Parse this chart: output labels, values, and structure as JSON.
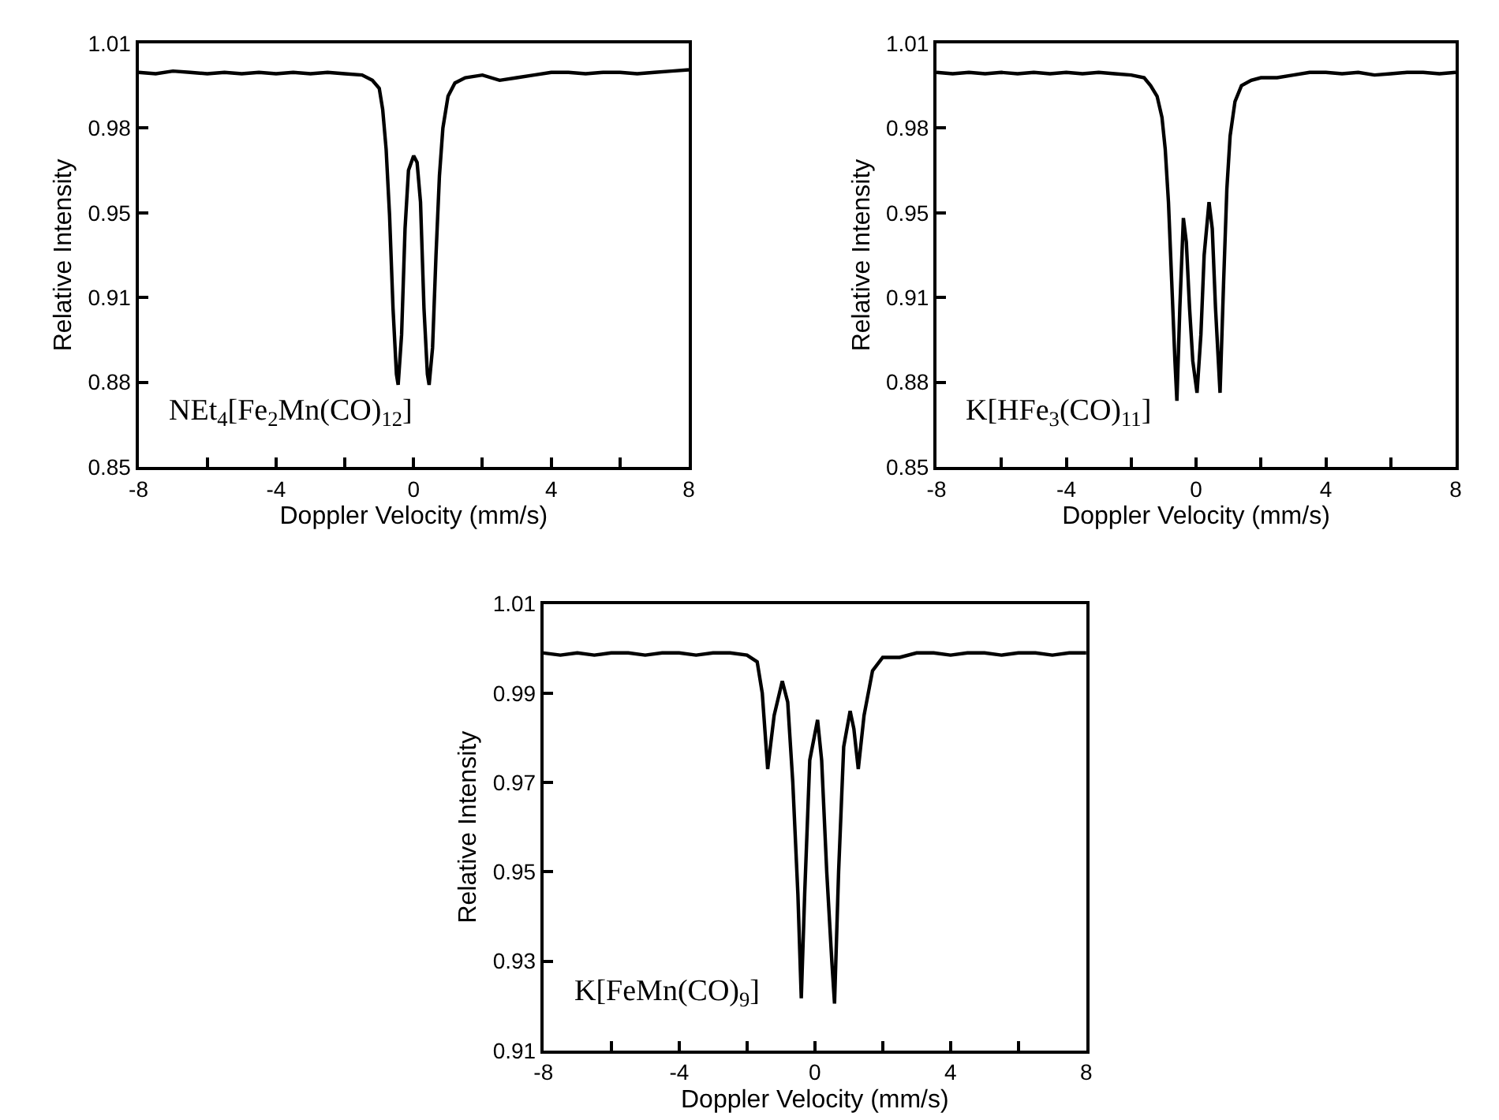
{
  "chart_data": [
    {
      "type": "line",
      "xlabel": "Doppler Velocity (mm/s)",
      "ylabel": "Relative Intensity",
      "annotations": [
        "NEt$_{4}$[Fe$_{2}$Mn(CO)$_{12}$]"
      ],
      "xlim": [
        -8,
        8
      ],
      "xticks": [
        -8,
        {
          "value": -6,
          "label": null
        },
        -4,
        {
          "value": -2,
          "label": null
        },
        0,
        {
          "value": 2,
          "label": null
        },
        4,
        {
          "value": 6,
          "label": null
        },
        8
      ],
      "ylim": [
        0.85,
        1.01
      ],
      "yticks": [
        0.85,
        {
          "value": 0.882,
          "label": "0.88"
        },
        {
          "value": 0.914,
          "label": "0.91"
        },
        {
          "value": 0.946,
          "label": "0.95"
        },
        {
          "value": 0.978,
          "label": "0.98"
        },
        1.01
      ],
      "marker": "none",
      "line_style": "solid",
      "x": [
        -8,
        -7.5,
        -7,
        -6.5,
        -6,
        -5.5,
        -5,
        -4.5,
        -4,
        -3.5,
        -3,
        -2.5,
        -2,
        -1.5,
        -1.2,
        -1.0,
        -0.9,
        -0.8,
        -0.7,
        -0.6,
        -0.5,
        -0.45,
        -0.35,
        -0.25,
        -0.15,
        0,
        0.1,
        0.2,
        0.3,
        0.4,
        0.45,
        0.55,
        0.65,
        0.75,
        0.85,
        1.0,
        1.2,
        1.5,
        2,
        2.5,
        3,
        3.5,
        4,
        4.5,
        5,
        5.5,
        6,
        6.5,
        7,
        7.5,
        8
      ],
      "series": [
        {
          "color": "#000000",
          "values": [
            0.999,
            0.9985,
            0.9995,
            0.999,
            0.9985,
            0.999,
            0.9985,
            0.999,
            0.9985,
            0.999,
            0.9985,
            0.999,
            0.9985,
            0.998,
            0.996,
            0.993,
            0.985,
            0.97,
            0.945,
            0.91,
            0.885,
            0.881,
            0.9,
            0.94,
            0.962,
            0.9675,
            0.965,
            0.95,
            0.91,
            0.885,
            0.881,
            0.895,
            0.93,
            0.96,
            0.978,
            0.99,
            0.995,
            0.997,
            0.998,
            0.996,
            0.997,
            0.998,
            0.999,
            0.999,
            0.9985,
            0.999,
            0.999,
            0.9985,
            0.999,
            0.9995,
            1.0
          ]
        }
      ]
    },
    {
      "type": "line",
      "xlabel": "Doppler Velocity (mm/s)",
      "ylabel": "Relative Intensity",
      "annotations": [
        "K[HFe$_{3}$(CO)$_{11}$]"
      ],
      "xlim": [
        -8,
        8
      ],
      "xticks": [
        -8,
        {
          "value": -6,
          "label": null
        },
        -4,
        {
          "value": -2,
          "label": null
        },
        0,
        {
          "value": 2,
          "label": null
        },
        4,
        {
          "value": 6,
          "label": null
        },
        8
      ],
      "ylim": [
        0.85,
        1.01
      ],
      "yticks": [
        0.85,
        {
          "value": 0.882,
          "label": "0.88"
        },
        {
          "value": 0.914,
          "label": "0.91"
        },
        {
          "value": 0.946,
          "label": "0.95"
        },
        {
          "value": 0.978,
          "label": "0.98"
        },
        1.01
      ],
      "marker": "none",
      "line_style": "solid",
      "x": [
        -8,
        -7.5,
        -7,
        -6.5,
        -6,
        -5.5,
        -5,
        -4.5,
        -4,
        -3.5,
        -3,
        -2.5,
        -2,
        -1.6,
        -1.4,
        -1.2,
        -1.05,
        -0.95,
        -0.85,
        -0.75,
        -0.65,
        -0.59,
        -0.5,
        -0.39,
        -0.3,
        -0.2,
        -0.1,
        0.03,
        0.15,
        0.25,
        0.4,
        0.5,
        0.6,
        0.74,
        0.85,
        0.95,
        1.05,
        1.2,
        1.4,
        1.7,
        2,
        2.5,
        3,
        3.5,
        4,
        4.5,
        5,
        5.5,
        6,
        6.5,
        7,
        7.5,
        8
      ],
      "series": [
        {
          "color": "#000000",
          "values": [
            0.999,
            0.9985,
            0.999,
            0.9985,
            0.999,
            0.9985,
            0.999,
            0.9985,
            0.999,
            0.9985,
            0.999,
            0.9985,
            0.998,
            0.997,
            0.994,
            0.99,
            0.982,
            0.97,
            0.95,
            0.92,
            0.89,
            0.875,
            0.91,
            0.944,
            0.935,
            0.91,
            0.89,
            0.878,
            0.9,
            0.93,
            0.95,
            0.94,
            0.91,
            0.878,
            0.92,
            0.955,
            0.975,
            0.988,
            0.994,
            0.996,
            0.997,
            0.997,
            0.998,
            0.999,
            0.999,
            0.9985,
            0.999,
            0.998,
            0.9985,
            0.999,
            0.999,
            0.9985,
            0.999
          ]
        }
      ]
    },
    {
      "type": "line",
      "xlabel": "Doppler Velocity (mm/s)",
      "ylabel": "Relative Intensity",
      "annotations": [
        "K[FeMn(CO)$_{9}$]"
      ],
      "xlim": [
        -8,
        8
      ],
      "xticks": [
        -8,
        {
          "value": -6,
          "label": null
        },
        -4,
        {
          "value": -2,
          "label": null
        },
        0,
        {
          "value": 2,
          "label": null
        },
        4,
        {
          "value": 6,
          "label": null
        },
        8
      ],
      "ylim": [
        0.91,
        1.01
      ],
      "yticks": [
        0.91,
        0.93,
        0.95,
        0.97,
        0.99,
        1.01
      ],
      "marker": "none",
      "line_style": "solid",
      "x": [
        -8,
        -7.5,
        -7,
        -6.5,
        -6,
        -5.5,
        -5,
        -4.5,
        -4,
        -3.5,
        -3,
        -2.5,
        -2,
        -1.7,
        -1.55,
        -1.39,
        -1.2,
        -0.96,
        -0.8,
        -0.65,
        -0.5,
        -0.4,
        -0.3,
        -0.15,
        0.08,
        0.2,
        0.35,
        0.5,
        0.58,
        0.7,
        0.85,
        1.04,
        1.15,
        1.28,
        1.45,
        1.7,
        2,
        2.5,
        3,
        3.5,
        4,
        4.5,
        5,
        5.5,
        6,
        6.5,
        7,
        7.5,
        8
      ],
      "series": [
        {
          "color": "#000000",
          "values": [
            0.999,
            0.9985,
            0.999,
            0.9985,
            0.999,
            0.999,
            0.9985,
            0.999,
            0.999,
            0.9985,
            0.999,
            0.999,
            0.9985,
            0.997,
            0.99,
            0.973,
            0.985,
            0.9927,
            0.988,
            0.97,
            0.945,
            0.9217,
            0.945,
            0.975,
            0.984,
            0.975,
            0.95,
            0.93,
            0.9205,
            0.95,
            0.978,
            0.986,
            0.982,
            0.973,
            0.985,
            0.995,
            0.998,
            0.998,
            0.999,
            0.999,
            0.9985,
            0.999,
            0.999,
            0.9985,
            0.999,
            0.999,
            0.9985,
            0.999,
            0.999
          ]
        }
      ]
    }
  ]
}
